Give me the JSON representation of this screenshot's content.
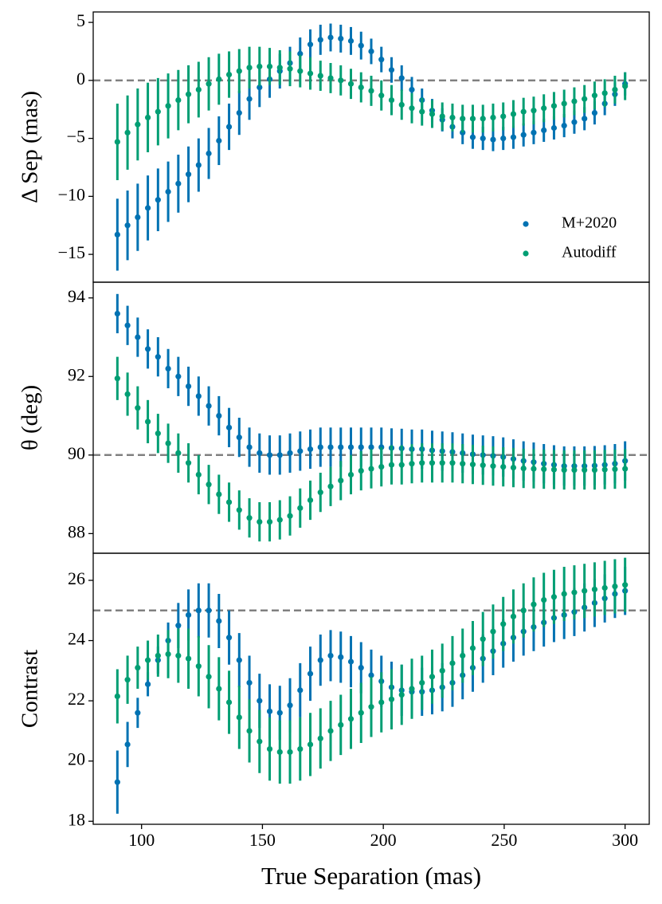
{
  "chart_data": [
    {
      "type": "scatter",
      "ylabel": "Δ Sep (mas)",
      "xlim": [
        80,
        310
      ],
      "ylim": [
        -17.4,
        5.9
      ],
      "yticks": [
        {
          "value": -15,
          "label": "−15"
        },
        {
          "value": -10,
          "label": "−10"
        },
        {
          "value": -5,
          "label": "−5"
        },
        0,
        5
      ],
      "hline": 0,
      "legend": "lower right",
      "x": [
        90,
        94.2,
        98.4,
        102.6,
        106.8,
        111,
        115.2,
        119.4,
        123.6,
        127.8,
        132,
        136.2,
        140.4,
        144.6,
        148.8,
        153,
        157.2,
        161.4,
        165.6,
        169.8,
        174,
        178.2,
        182.4,
        186.6,
        190.8,
        195,
        199.2,
        203.4,
        207.6,
        211.8,
        216,
        220.2,
        224.4,
        228.6,
        232.8,
        237,
        241.2,
        245.4,
        249.6,
        253.8,
        258,
        262.2,
        266.4,
        270.6,
        274.8,
        279,
        283.2,
        287.4,
        291.6,
        295.8,
        300
      ],
      "series": [
        {
          "name": "M+2020",
          "color": "#0072b2",
          "values": [
            -13.3,
            -12.5,
            -11.8,
            -11.0,
            -10.3,
            -9.6,
            -8.9,
            -8.1,
            -7.3,
            -6.3,
            -5.2,
            -4.0,
            -2.8,
            -1.6,
            -0.6,
            0.1,
            0.8,
            1.5,
            2.3,
            3.1,
            3.5,
            3.7,
            3.6,
            3.4,
            3.0,
            2.5,
            1.8,
            0.9,
            0.2,
            -0.8,
            -1.7,
            -2.6,
            -3.4,
            -4.0,
            -4.5,
            -4.9,
            -5.0,
            -5.1,
            -5.0,
            -4.9,
            -4.7,
            -4.5,
            -4.3,
            -4.1,
            -3.9,
            -3.6,
            -3.3,
            -2.8,
            -2.0,
            -1.2,
            -0.3
          ],
          "errors": [
            3.1,
            3.0,
            2.9,
            2.8,
            2.7,
            2.6,
            2.5,
            2.4,
            2.3,
            2.2,
            2.1,
            2.0,
            1.9,
            1.8,
            1.7,
            1.6,
            1.5,
            1.4,
            1.4,
            1.3,
            1.3,
            1.2,
            1.2,
            1.2,
            1.2,
            1.1,
            1.1,
            1.1,
            1.1,
            1.1,
            1.0,
            1.0,
            1.0,
            1.0,
            1.0,
            1.0,
            1.0,
            1.0,
            1.0,
            1.0,
            1.0,
            1.0,
            1.0,
            1.0,
            1.0,
            1.0,
            1.0,
            1.0,
            1.0,
            1.0,
            1.0
          ]
        },
        {
          "name": "Autodiff",
          "color": "#009e73",
          "values": [
            -5.3,
            -4.5,
            -3.8,
            -3.2,
            -2.7,
            -2.2,
            -1.7,
            -1.2,
            -0.8,
            -0.3,
            0.1,
            0.5,
            0.8,
            1.1,
            1.2,
            1.2,
            1.1,
            1.0,
            0.8,
            0.6,
            0.4,
            0.2,
            0.0,
            -0.3,
            -0.6,
            -0.9,
            -1.3,
            -1.7,
            -2.1,
            -2.4,
            -2.7,
            -2.9,
            -3.1,
            -3.2,
            -3.3,
            -3.3,
            -3.3,
            -3.2,
            -3.1,
            -2.9,
            -2.7,
            -2.6,
            -2.4,
            -2.2,
            -2.0,
            -1.8,
            -1.6,
            -1.3,
            -1.1,
            -0.8,
            -0.5
          ],
          "errors": [
            3.3,
            3.2,
            3.1,
            3.0,
            2.9,
            2.8,
            2.6,
            2.5,
            2.4,
            2.3,
            2.2,
            2.0,
            1.9,
            1.8,
            1.7,
            1.6,
            1.5,
            1.5,
            1.4,
            1.4,
            1.3,
            1.3,
            1.3,
            1.3,
            1.3,
            1.3,
            1.3,
            1.3,
            1.3,
            1.3,
            1.2,
            1.2,
            1.2,
            1.2,
            1.2,
            1.2,
            1.2,
            1.2,
            1.2,
            1.2,
            1.2,
            1.2,
            1.2,
            1.2,
            1.2,
            1.2,
            1.2,
            1.2,
            1.2,
            1.2,
            1.2
          ]
        }
      ]
    },
    {
      "type": "scatter",
      "ylabel": "θ (deg)",
      "xlim": [
        80,
        310
      ],
      "ylim": [
        87.5,
        94.4
      ],
      "yticks": [
        88,
        90,
        92,
        94
      ],
      "hline": 90,
      "x": [
        90,
        94.2,
        98.4,
        102.6,
        106.8,
        111,
        115.2,
        119.4,
        123.6,
        127.8,
        132,
        136.2,
        140.4,
        144.6,
        148.8,
        153,
        157.2,
        161.4,
        165.6,
        169.8,
        174,
        178.2,
        182.4,
        186.6,
        190.8,
        195,
        199.2,
        203.4,
        207.6,
        211.8,
        216,
        220.2,
        224.4,
        228.6,
        232.8,
        237,
        241.2,
        245.4,
        249.6,
        253.8,
        258,
        262.2,
        266.4,
        270.6,
        274.8,
        279,
        283.2,
        287.4,
        291.6,
        295.8,
        300
      ],
      "series": [
        {
          "name": "M+2020",
          "color": "#0072b2",
          "values": [
            93.6,
            93.3,
            93.0,
            92.7,
            92.5,
            92.2,
            92.0,
            91.75,
            91.5,
            91.25,
            91.0,
            90.7,
            90.45,
            90.2,
            90.05,
            90.0,
            90.0,
            90.05,
            90.1,
            90.15,
            90.2,
            90.2,
            90.2,
            90.2,
            90.2,
            90.2,
            90.2,
            90.18,
            90.17,
            90.15,
            90.15,
            90.12,
            90.1,
            90.08,
            90.05,
            90.02,
            90.0,
            89.98,
            89.95,
            89.9,
            89.85,
            89.82,
            89.78,
            89.75,
            89.72,
            89.72,
            89.72,
            89.73,
            89.75,
            89.78,
            89.85
          ],
          "errors": [
            0.5,
            0.5,
            0.5,
            0.5,
            0.5,
            0.5,
            0.5,
            0.5,
            0.5,
            0.5,
            0.5,
            0.5,
            0.5,
            0.5,
            0.5,
            0.5,
            0.5,
            0.5,
            0.5,
            0.5,
            0.5,
            0.5,
            0.5,
            0.5,
            0.5,
            0.5,
            0.5,
            0.5,
            0.5,
            0.5,
            0.5,
            0.5,
            0.5,
            0.5,
            0.5,
            0.5,
            0.5,
            0.5,
            0.5,
            0.5,
            0.5,
            0.5,
            0.5,
            0.5,
            0.5,
            0.5,
            0.5,
            0.5,
            0.5,
            0.5,
            0.5
          ]
        },
        {
          "name": "Autodiff",
          "color": "#009e73",
          "values": [
            91.95,
            91.55,
            91.2,
            90.85,
            90.55,
            90.3,
            90.05,
            89.8,
            89.5,
            89.25,
            89.0,
            88.8,
            88.6,
            88.4,
            88.3,
            88.3,
            88.35,
            88.45,
            88.65,
            88.85,
            89.05,
            89.2,
            89.35,
            89.5,
            89.6,
            89.65,
            89.7,
            89.75,
            89.75,
            89.78,
            89.8,
            89.8,
            89.8,
            89.8,
            89.78,
            89.76,
            89.74,
            89.72,
            89.7,
            89.68,
            89.66,
            89.65,
            89.64,
            89.63,
            89.62,
            89.62,
            89.62,
            89.62,
            89.63,
            89.64,
            89.65
          ],
          "errors": [
            0.55,
            0.55,
            0.55,
            0.55,
            0.5,
            0.5,
            0.5,
            0.5,
            0.5,
            0.5,
            0.5,
            0.5,
            0.5,
            0.5,
            0.5,
            0.5,
            0.5,
            0.5,
            0.5,
            0.5,
            0.5,
            0.5,
            0.5,
            0.5,
            0.5,
            0.5,
            0.5,
            0.5,
            0.5,
            0.5,
            0.5,
            0.5,
            0.5,
            0.5,
            0.5,
            0.5,
            0.5,
            0.5,
            0.5,
            0.5,
            0.5,
            0.5,
            0.5,
            0.5,
            0.5,
            0.5,
            0.5,
            0.5,
            0.5,
            0.5,
            0.5
          ]
        }
      ]
    },
    {
      "type": "scatter",
      "ylabel": "Contrast",
      "xlabel": "True Separation (mas)",
      "xlim": [
        80,
        310
      ],
      "ylim": [
        17.9,
        26.9
      ],
      "xticks": [
        100,
        150,
        200,
        250,
        300
      ],
      "yticks": [
        18,
        20,
        22,
        24,
        26
      ],
      "hline": 25,
      "x": [
        90,
        94.2,
        98.4,
        102.6,
        106.8,
        111,
        115.2,
        119.4,
        123.6,
        127.8,
        132,
        136.2,
        140.4,
        144.6,
        148.8,
        153,
        157.2,
        161.4,
        165.6,
        169.8,
        174,
        178.2,
        182.4,
        186.6,
        190.8,
        195,
        199.2,
        203.4,
        207.6,
        211.8,
        216,
        220.2,
        224.4,
        228.6,
        232.8,
        237,
        241.2,
        245.4,
        249.6,
        253.8,
        258,
        262.2,
        266.4,
        270.6,
        274.8,
        279,
        283.2,
        287.4,
        291.6,
        295.8,
        300
      ],
      "series": [
        {
          "name": "M+2020",
          "color": "#0072b2",
          "values": [
            19.3,
            20.55,
            21.6,
            22.55,
            23.35,
            24.0,
            24.5,
            24.85,
            25.0,
            25.0,
            24.65,
            24.1,
            23.35,
            22.6,
            22.0,
            21.65,
            21.6,
            21.85,
            22.35,
            22.9,
            23.35,
            23.5,
            23.45,
            23.3,
            23.1,
            22.85,
            22.65,
            22.45,
            22.35,
            22.3,
            22.3,
            22.35,
            22.45,
            22.6,
            22.85,
            23.1,
            23.4,
            23.65,
            23.9,
            24.1,
            24.3,
            24.45,
            24.6,
            24.75,
            24.85,
            24.95,
            25.1,
            25.25,
            25.4,
            25.55,
            25.65
          ],
          "errors": [
            1.05,
            0.75,
            0.5,
            0.4,
            0.45,
            0.6,
            0.75,
            0.85,
            0.9,
            0.9,
            0.9,
            0.9,
            0.9,
            0.9,
            0.9,
            0.9,
            0.9,
            0.9,
            0.9,
            0.9,
            0.85,
            0.85,
            0.85,
            0.85,
            0.85,
            0.85,
            0.85,
            0.85,
            0.85,
            0.85,
            0.8,
            0.8,
            0.8,
            0.8,
            0.8,
            0.8,
            0.8,
            0.8,
            0.8,
            0.8,
            0.8,
            0.8,
            0.8,
            0.8,
            0.8,
            0.8,
            0.8,
            0.8,
            0.8,
            0.8,
            0.8
          ]
        },
        {
          "name": "Autodiff",
          "color": "#009e73",
          "values": [
            22.15,
            22.7,
            23.1,
            23.35,
            23.5,
            23.55,
            23.5,
            23.4,
            23.15,
            22.8,
            22.4,
            21.95,
            21.45,
            21.0,
            20.65,
            20.4,
            20.3,
            20.3,
            20.4,
            20.55,
            20.75,
            21.0,
            21.2,
            21.4,
            21.6,
            21.8,
            21.95,
            22.05,
            22.2,
            22.4,
            22.6,
            22.8,
            23.0,
            23.25,
            23.5,
            23.75,
            24.05,
            24.3,
            24.55,
            24.8,
            25.0,
            25.2,
            25.35,
            25.45,
            25.55,
            25.6,
            25.65,
            25.7,
            25.75,
            25.8,
            25.85
          ],
          "errors": [
            0.9,
            0.8,
            0.7,
            0.65,
            0.7,
            0.8,
            0.9,
            1.0,
            1.0,
            1.05,
            1.05,
            1.05,
            1.05,
            1.05,
            1.05,
            1.05,
            1.05,
            1.05,
            1.05,
            1.05,
            1.0,
            1.0,
            1.0,
            1.0,
            1.0,
            1.0,
            1.0,
            1.0,
            1.0,
            1.0,
            0.9,
            0.9,
            0.9,
            0.9,
            0.9,
            0.9,
            0.9,
            0.9,
            0.9,
            0.9,
            0.9,
            0.9,
            0.9,
            0.9,
            0.9,
            0.9,
            0.9,
            0.9,
            0.9,
            0.9,
            0.9
          ]
        }
      ]
    }
  ]
}
